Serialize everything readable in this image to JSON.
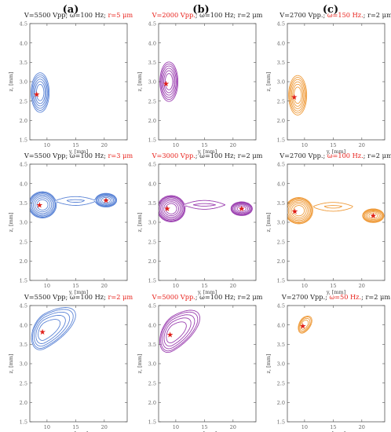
{
  "figure": {
    "column_labels": [
      "(a)",
      "(b)",
      "(c)"
    ],
    "highlight_color": "#e8201a",
    "column_colors": [
      "#5b84d6",
      "#9b3fb0",
      "#ef9b3a"
    ],
    "star_color": "#e0201a"
  },
  "chart_data": [
    {
      "type": "contour",
      "panel": "a1",
      "column": 0,
      "row": 0,
      "title_segments": [
        {
          "text": "V=5500 Vpp;  ω=100 Hz;  ",
          "highlight": false
        },
        {
          "text": "r=5 μm",
          "highlight": true
        }
      ],
      "xlabel": "y, [mm]",
      "ylabel": "z, [mm]",
      "xlim": [
        7,
        24
      ],
      "ylim": [
        1.5,
        4.5
      ],
      "xticks": [
        10,
        15,
        20
      ],
      "yticks": [
        1.5,
        2.0,
        2.5,
        3.0,
        3.5,
        4.0,
        4.5
      ],
      "tick_labels_visible": false,
      "shape": "open",
      "equilibrium": [
        [
          8.2,
          2.68
        ]
      ],
      "center": [
        8.8,
        2.72
      ],
      "saddle": [
        18.5,
        2.72
      ],
      "levels": [
        0.15,
        0.27,
        0.4,
        0.55,
        0.7,
        0.86
      ]
    },
    {
      "type": "contour",
      "panel": "b1",
      "column": 1,
      "row": 0,
      "title_segments": [
        {
          "text": "V=2000 Vpp.",
          "highlight": true
        },
        {
          "text": ";  ω=100 Hz;  r=2 μm",
          "highlight": false
        }
      ],
      "xlabel": "y, [mm]",
      "ylabel": "z, [mm]",
      "xlim": [
        7,
        24
      ],
      "ylim": [
        1.5,
        4.5
      ],
      "xticks": [
        10,
        15,
        20
      ],
      "yticks": [
        1.5,
        2.0,
        2.5,
        3.0,
        3.5,
        4.0,
        4.5
      ],
      "tick_labels_visible": false,
      "shape": "open",
      "equilibrium": [
        [
          8.3,
          2.95
        ]
      ],
      "center": [
        8.8,
        3.0
      ],
      "saddle": [
        18.5,
        3.0
      ],
      "levels": [
        0.15,
        0.27,
        0.4,
        0.55,
        0.7,
        0.86
      ]
    },
    {
      "type": "contour",
      "panel": "c1",
      "column": 2,
      "row": 0,
      "title_segments": [
        {
          "text": "V=2700 Vpp.;  ",
          "highlight": false
        },
        {
          "text": "ω=150 Hz.",
          "highlight": true
        },
        {
          "text": ";  r=2 μm",
          "highlight": false
        }
      ],
      "xlabel": "y, [mm]",
      "ylabel": "z, [mm]",
      "xlim": [
        7,
        24
      ],
      "ylim": [
        1.5,
        4.5
      ],
      "xticks": [
        10,
        15,
        20
      ],
      "yticks": [
        1.5,
        2.0,
        2.5,
        3.0,
        3.5,
        4.0,
        4.5
      ],
      "tick_labels_visible": false,
      "shape": "open",
      "equilibrium": [
        [
          8.2,
          2.6
        ]
      ],
      "center": [
        8.8,
        2.65
      ],
      "saddle": [
        18.5,
        2.65
      ],
      "levels": [
        0.15,
        0.27,
        0.4,
        0.55,
        0.7,
        0.86
      ]
    },
    {
      "type": "contour",
      "panel": "a2",
      "column": 0,
      "row": 1,
      "title_segments": [
        {
          "text": "V=5500 Vpp;  ω=100 Hz;  ",
          "highlight": false
        },
        {
          "text": "r=3 μm",
          "highlight": true
        }
      ],
      "xlabel": "y, [mm]",
      "ylabel": "z, [mm]",
      "xlim": [
        7,
        24
      ],
      "ylim": [
        1.5,
        4.5
      ],
      "xticks": [
        10,
        15,
        20
      ],
      "yticks": [
        1.5,
        2.0,
        2.5,
        3.0,
        3.5,
        4.0,
        4.5
      ],
      "tick_labels_visible": false,
      "shape": "double",
      "equilibrium": [
        [
          8.7,
          3.45
        ],
        [
          20.3,
          3.57
        ]
      ],
      "center": [
        9.2,
        3.45
      ],
      "saddle": [
        15,
        3.55
      ],
      "levels": [
        0.18,
        0.32,
        0.48,
        0.64,
        0.8,
        0.95,
        1.0,
        1.12
      ]
    },
    {
      "type": "contour",
      "panel": "b2",
      "column": 1,
      "row": 1,
      "title_segments": [
        {
          "text": "V=3000 Vpp.",
          "highlight": true
        },
        {
          "text": ";  ω=100 Hz;  r=2 μm",
          "highlight": false
        }
      ],
      "xlabel": "y, [mm]",
      "ylabel": "z, [mm]",
      "xlim": [
        7,
        24
      ],
      "ylim": [
        1.5,
        4.5
      ],
      "xticks": [
        10,
        15,
        20
      ],
      "yticks": [
        1.5,
        2.0,
        2.5,
        3.0,
        3.5,
        4.0,
        4.5
      ],
      "tick_labels_visible": false,
      "shape": "double",
      "equilibrium": [
        [
          8.5,
          3.35
        ],
        [
          21.5,
          3.35
        ]
      ],
      "center": [
        9.2,
        3.35
      ],
      "saddle": [
        15,
        3.45
      ],
      "levels": [
        0.18,
        0.32,
        0.48,
        0.64,
        0.8,
        0.95,
        1.0,
        1.12
      ]
    },
    {
      "type": "contour",
      "panel": "c2",
      "column": 2,
      "row": 1,
      "title_segments": [
        {
          "text": "V=2700 Vpp.;  ",
          "highlight": false
        },
        {
          "text": "ω=100 Hz.",
          "highlight": true
        },
        {
          "text": ";  r=2 μm",
          "highlight": false
        }
      ],
      "xlabel": "y, [mm]",
      "ylabel": "z, [mm]",
      "xlim": [
        7,
        24
      ],
      "ylim": [
        1.5,
        4.5
      ],
      "xticks": [
        10,
        15,
        20
      ],
      "yticks": [
        1.5,
        2.0,
        2.5,
        3.0,
        3.5,
        4.0,
        4.5
      ],
      "tick_labels_visible": false,
      "shape": "double",
      "equilibrium": [
        [
          8.3,
          3.28
        ],
        [
          22.0,
          3.17
        ]
      ],
      "center": [
        9.0,
        3.3
      ],
      "saddle": [
        15,
        3.4
      ],
      "levels": [
        0.18,
        0.32,
        0.48,
        0.64,
        0.8,
        0.95,
        1.0,
        1.12
      ]
    },
    {
      "type": "contour",
      "panel": "a3",
      "column": 0,
      "row": 2,
      "title_segments": [
        {
          "text": "V=5500 Vpp;  ω=100 Hz;  ",
          "highlight": false
        },
        {
          "text": "r=2 μm",
          "highlight": true
        }
      ],
      "xlabel": "y, [mm]",
      "ylabel": "z, [mm]",
      "xlim": [
        7,
        24
      ],
      "ylim": [
        1.5,
        4.5
      ],
      "xticks": [
        10,
        15,
        20
      ],
      "yticks": [
        1.5,
        2.0,
        2.5,
        3.0,
        3.5,
        4.0,
        4.5
      ],
      "tick_labels_visible": false,
      "shape": "single",
      "equilibrium": [
        [
          9.2,
          3.82
        ]
      ],
      "center": [
        9.6,
        3.84
      ],
      "extent": [
        2.3,
        0.45,
        5.4,
        0.28,
        0.95
      ],
      "levels": [
        0.25,
        0.45,
        0.65,
        0.85,
        1.0
      ]
    },
    {
      "type": "contour",
      "panel": "b3",
      "column": 1,
      "row": 2,
      "title_segments": [
        {
          "text": "V=5000 Vpp.",
          "highlight": true
        },
        {
          "text": ";  ω=100 Hz;  r=2 μm",
          "highlight": false
        }
      ],
      "xlabel": "y, [mm]",
      "ylabel": "z, [mm]",
      "xlim": [
        7,
        24
      ],
      "ylim": [
        1.5,
        4.5
      ],
      "xticks": [
        10,
        15,
        20
      ],
      "yticks": [
        1.5,
        2.0,
        2.5,
        3.0,
        3.5,
        4.0,
        4.5
      ],
      "tick_labels_visible": false,
      "shape": "single",
      "equilibrium": [
        [
          9.0,
          3.75
        ]
      ],
      "center": [
        9.5,
        3.78
      ],
      "extent": [
        2.3,
        0.45,
        4.7,
        0.26,
        1.05
      ],
      "levels": [
        0.25,
        0.45,
        0.65,
        0.85,
        1.0
      ]
    },
    {
      "type": "contour",
      "panel": "c3",
      "column": 2,
      "row": 2,
      "title_segments": [
        {
          "text": "V=2700 Vpp.;  ",
          "highlight": false
        },
        {
          "text": "ω=50 Hz.",
          "highlight": true
        },
        {
          "text": ";  r=2 μm",
          "highlight": false
        }
      ],
      "xlabel": "y, [mm]",
      "ylabel": "z, [mm]",
      "xlim": [
        7,
        24
      ],
      "ylim": [
        1.5,
        4.5
      ],
      "xticks": [
        10,
        15,
        20
      ],
      "yticks": [
        1.5,
        2.0,
        2.5,
        3.0,
        3.5,
        4.0,
        4.5
      ],
      "tick_labels_visible": false,
      "shape": "single",
      "equilibrium": [
        [
          9.7,
          3.97
        ]
      ],
      "center": [
        9.9,
        4.0
      ],
      "extent": [
        1.0,
        0.2,
        1.4,
        0.3,
        1.0
      ],
      "levels": [
        0.3,
        0.55,
        0.8,
        1.0
      ]
    }
  ]
}
